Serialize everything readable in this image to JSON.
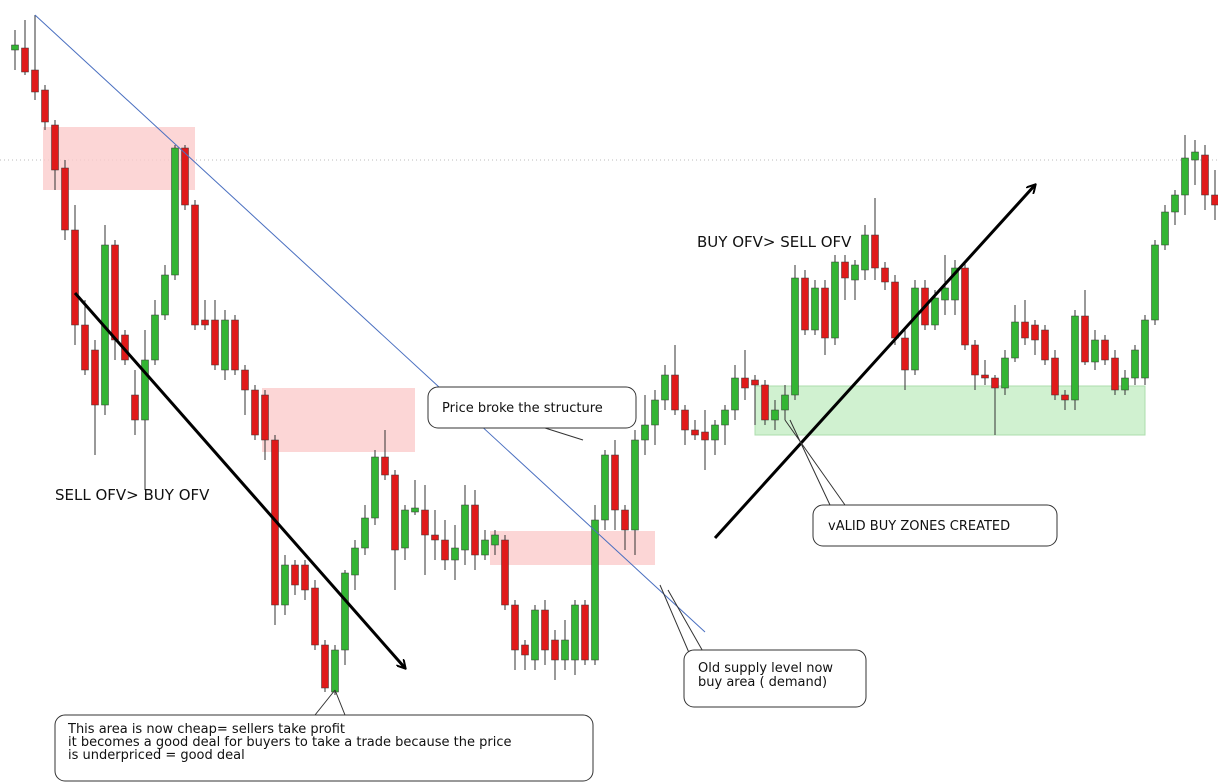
{
  "chart_data": {
    "type": "candlestick",
    "ylim": [
      0,
      800
    ],
    "up_color": "#33b533",
    "down_color": "#e01a1a",
    "open": [
      750,
      752,
      730,
      710,
      675,
      632,
      570,
      475,
      450,
      395,
      555,
      465,
      405,
      380,
      440,
      485,
      525,
      652,
      595,
      480,
      480,
      430,
      480,
      430,
      410,
      405,
      360,
      195,
      235,
      235,
      212,
      155,
      108,
      150,
      225,
      252,
      282,
      343,
      325,
      252,
      288,
      290,
      265,
      260,
      240,
      250,
      295,
      245,
      255,
      260,
      195,
      155,
      140,
      190,
      160,
      140,
      140,
      195,
      140,
      280,
      345,
      290,
      270,
      360,
      375,
      400,
      425,
      390,
      370,
      368,
      360,
      375,
      390,
      422,
      420,
      415,
      380,
      390,
      405,
      522,
      470,
      512,
      462,
      538,
      520,
      530,
      565,
      532,
      518,
      462,
      430,
      512,
      475,
      500,
      500,
      532,
      455,
      425,
      422,
      412,
      442,
      478,
      475,
      470,
      442,
      405,
      400,
      484,
      438,
      460,
      442,
      410,
      422,
      422,
      480,
      555,
      588,
      605,
      640,
      645,
      605
    ],
    "high": [
      770,
      780,
      785,
      715,
      680,
      640,
      595,
      500,
      460,
      575,
      560,
      470,
      430,
      470,
      500,
      535,
      655,
      655,
      600,
      500,
      500,
      490,
      485,
      435,
      415,
      410,
      365,
      245,
      240,
      240,
      220,
      160,
      155,
      230,
      260,
      295,
      350,
      370,
      330,
      295,
      320,
      315,
      290,
      280,
      275,
      315,
      310,
      270,
      270,
      265,
      200,
      160,
      195,
      200,
      170,
      180,
      200,
      200,
      295,
      350,
      360,
      295,
      370,
      405,
      410,
      435,
      455,
      395,
      380,
      390,
      380,
      395,
      435,
      450,
      425,
      420,
      400,
      415,
      535,
      530,
      520,
      520,
      545,
      545,
      540,
      575,
      602,
      538,
      525,
      470,
      520,
      520,
      510,
      545,
      540,
      538,
      460,
      440,
      425,
      450,
      495,
      500,
      480,
      475,
      450,
      410,
      490,
      510,
      470,
      465,
      450,
      430,
      455,
      485,
      560,
      595,
      610,
      665,
      660,
      655,
      630
    ],
    "low": [
      730,
      725,
      700,
      670,
      610,
      560,
      455,
      425,
      345,
      385,
      440,
      435,
      365,
      310,
      435,
      480,
      520,
      590,
      470,
      470,
      430,
      420,
      425,
      385,
      360,
      340,
      175,
      185,
      205,
      200,
      150,
      108,
      105,
      135,
      210,
      245,
      275,
      320,
      210,
      240,
      285,
      225,
      240,
      230,
      220,
      235,
      230,
      240,
      245,
      190,
      130,
      130,
      130,
      135,
      120,
      130,
      125,
      135,
      135,
      270,
      270,
      250,
      245,
      345,
      355,
      390,
      385,
      355,
      360,
      330,
      345,
      355,
      380,
      400,
      375,
      375,
      370,
      380,
      400,
      465,
      465,
      445,
      455,
      500,
      500,
      520,
      520,
      510,
      455,
      410,
      425,
      470,
      470,
      485,
      485,
      450,
      410,
      415,
      365,
      405,
      438,
      455,
      445,
      435,
      400,
      390,
      390,
      435,
      430,
      435,
      405,
      405,
      415,
      415,
      475,
      550,
      575,
      585,
      615,
      590,
      580
    ],
    "close": [
      755,
      728,
      708,
      678,
      630,
      570,
      475,
      430,
      395,
      555,
      460,
      440,
      380,
      440,
      485,
      525,
      652,
      595,
      475,
      475,
      435,
      480,
      430,
      410,
      365,
      360,
      195,
      235,
      215,
      210,
      155,
      112,
      150,
      227,
      252,
      282,
      343,
      325,
      250,
      290,
      292,
      265,
      260,
      240,
      252,
      295,
      245,
      260,
      265,
      195,
      150,
      145,
      190,
      150,
      140,
      160,
      195,
      140,
      280,
      345,
      290,
      270,
      360,
      375,
      400,
      425,
      390,
      370,
      365,
      360,
      375,
      390,
      422,
      412,
      415,
      380,
      390,
      405,
      522,
      470,
      512,
      462,
      538,
      522,
      535,
      565,
      532,
      518,
      462,
      430,
      512,
      475,
      502,
      512,
      532,
      455,
      425,
      422,
      412,
      442,
      478,
      462,
      460,
      440,
      405,
      400,
      484,
      438,
      460,
      440,
      410,
      422,
      450,
      480,
      555,
      588,
      605,
      642,
      648,
      605,
      595
    ]
  },
  "annotations": {
    "sell": "SELL OFV> BUY OFV",
    "buy": "BUY OFV> SELL OFV",
    "broke": "Price broke the structure",
    "valid": "vALID BUY ZONES CREATED",
    "old": [
      "Old supply level now",
      "buy area ( demand)"
    ],
    "cheap": [
      "This area is now cheap= sellers take profit",
      "it becomes a good deal for buyers to take a trade because the price",
      "is underpriced = good deal"
    ]
  }
}
